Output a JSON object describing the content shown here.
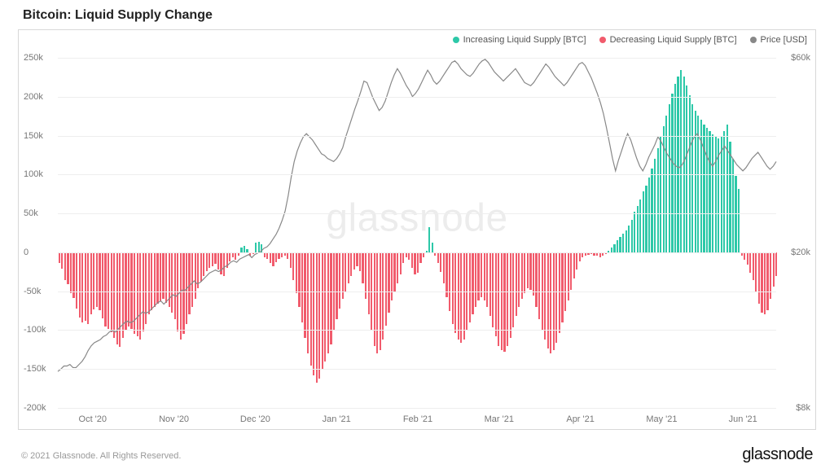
{
  "title": "Bitcoin: Liquid Supply Change",
  "watermark": "glassnode",
  "footer": {
    "copyright": "© 2021 Glassnode. All Rights Reserved.",
    "brand": "glassnode"
  },
  "legend": {
    "increasing": {
      "label": "Increasing Liquid Supply [BTC]",
      "color": "#2dc8a8"
    },
    "decreasing": {
      "label": "Decreasing Liquid Supply [BTC]",
      "color": "#f15b6c"
    },
    "price": {
      "label": "Price [USD]",
      "color": "#888888"
    }
  },
  "chart": {
    "type": "bar+line",
    "background_color": "#ffffff",
    "frame_color": "#d8d8d8",
    "grid_color": "#eeeeee",
    "bar_width_ratio": 0.62,
    "left_axis": {
      "min": -200,
      "max": 250,
      "ticks": [
        -200,
        -150,
        -100,
        -50,
        0,
        50,
        100,
        150,
        200,
        250
      ],
      "tick_labels": [
        "-200k",
        "-150k",
        "-100k",
        "-50k",
        "0",
        "50k",
        "100k",
        "150k",
        "200k",
        "250k"
      ],
      "label_color": "#777777",
      "label_fontsize": 11
    },
    "right_axis": {
      "ticks": [
        {
          "y_left_value": 250,
          "label": "$60k"
        },
        {
          "y_left_value": 0,
          "label": "$20k"
        },
        {
          "y_left_value": -200,
          "label": "$8k"
        }
      ],
      "label_color": "#777777",
      "label_fontsize": 11
    },
    "x_axis": {
      "labels": [
        "Oct '20",
        "Nov '20",
        "Dec '20",
        "Jan '21",
        "Feb '21",
        "Mar '21",
        "Apr '21",
        "May '21",
        "Jun '21"
      ],
      "label_positions": [
        12,
        40,
        68,
        96,
        124,
        152,
        180,
        208,
        236
      ]
    },
    "bars": [
      -14,
      -21,
      -36,
      -41,
      -52,
      -59,
      -72,
      -84,
      -90,
      -88,
      -92,
      -80,
      -73,
      -70,
      -74,
      -85,
      -95,
      -98,
      -103,
      -110,
      -118,
      -122,
      -110,
      -100,
      -95,
      -98,
      -105,
      -108,
      -112,
      -102,
      -92,
      -80,
      -74,
      -70,
      -66,
      -63,
      -60,
      -65,
      -70,
      -78,
      -86,
      -102,
      -112,
      -105,
      -92,
      -80,
      -70,
      -60,
      -46,
      -38,
      -30,
      -24,
      -20,
      -18,
      -15,
      -22,
      -28,
      -31,
      -20,
      -12,
      -6,
      -10,
      -4,
      6,
      8,
      4,
      -4,
      -2,
      12,
      14,
      10,
      -6,
      -8,
      -14,
      -18,
      -13,
      -8,
      -6,
      -4,
      -8,
      -20,
      -36,
      -52,
      -70,
      -90,
      -110,
      -130,
      -146,
      -158,
      -168,
      -162,
      -150,
      -140,
      -130,
      -118,
      -100,
      -86,
      -72,
      -60,
      -50,
      -40,
      -30,
      -22,
      -18,
      -24,
      -40,
      -60,
      -80,
      -100,
      -120,
      -130,
      -126,
      -112,
      -94,
      -78,
      -62,
      -50,
      -40,
      -28,
      -14,
      -6,
      -10,
      -20,
      -28,
      -26,
      -14,
      -6,
      2,
      32,
      12,
      -4,
      -14,
      -25,
      -40,
      -58,
      -76,
      -92,
      -104,
      -112,
      -116,
      -112,
      -100,
      -90,
      -80,
      -70,
      -62,
      -58,
      -62,
      -70,
      -82,
      -96,
      -108,
      -120,
      -126,
      -128,
      -120,
      -110,
      -96,
      -82,
      -70,
      -60,
      -52,
      -46,
      -48,
      -56,
      -70,
      -86,
      -100,
      -112,
      -124,
      -130,
      -126,
      -116,
      -104,
      -90,
      -76,
      -62,
      -48,
      -34,
      -22,
      -12,
      -6,
      -4,
      -3,
      -2,
      -4,
      -4,
      -6,
      -4,
      -2,
      2,
      6,
      10,
      16,
      20,
      24,
      28,
      34,
      42,
      52,
      60,
      68,
      78,
      86,
      96,
      108,
      120,
      134,
      148,
      162,
      176,
      190,
      204,
      216,
      226,
      234,
      226,
      214,
      202,
      190,
      182,
      176,
      170,
      164,
      160,
      156,
      152,
      148,
      146,
      150,
      156,
      164,
      142,
      120,
      98,
      82,
      -4,
      -10,
      -16,
      -26,
      -36,
      -50,
      -66,
      -78,
      -80,
      -74,
      -60,
      -44,
      -30
    ],
    "price_line": {
      "color": "#888888",
      "width": 1.2,
      "points": [
        -155,
        -152,
        -148,
        -148,
        -146,
        -150,
        -150,
        -146,
        -142,
        -136,
        -128,
        -122,
        -118,
        -116,
        -114,
        -110,
        -108,
        -104,
        -102,
        -104,
        -100,
        -96,
        -92,
        -90,
        -92,
        -90,
        -86,
        -82,
        -78,
        -80,
        -78,
        -74,
        -70,
        -66,
        -64,
        -68,
        -64,
        -60,
        -56,
        -58,
        -54,
        -50,
        -50,
        -46,
        -42,
        -38,
        -42,
        -40,
        -36,
        -32,
        -28,
        -26,
        -24,
        -26,
        -24,
        -20,
        -18,
        -14,
        -12,
        -14,
        -10,
        -8,
        -6,
        -4,
        -8,
        -4,
        -2,
        0,
        4,
        6,
        10,
        16,
        22,
        30,
        40,
        52,
        72,
        96,
        116,
        130,
        140,
        148,
        152,
        148,
        144,
        138,
        132,
        126,
        124,
        120,
        118,
        116,
        120,
        126,
        134,
        148,
        160,
        172,
        184,
        195,
        207,
        220,
        218,
        208,
        198,
        190,
        182,
        186,
        194,
        206,
        218,
        228,
        236,
        230,
        222,
        214,
        208,
        200,
        204,
        210,
        218,
        226,
        234,
        228,
        220,
        216,
        220,
        226,
        232,
        238,
        244,
        246,
        242,
        236,
        232,
        228,
        226,
        230,
        236,
        242,
        246,
        248,
        244,
        238,
        232,
        228,
        224,
        220,
        224,
        228,
        232,
        236,
        230,
        224,
        218,
        216,
        214,
        218,
        224,
        230,
        236,
        242,
        238,
        232,
        226,
        222,
        218,
        214,
        218,
        224,
        230,
        236,
        242,
        244,
        240,
        232,
        224,
        214,
        204,
        192,
        178,
        160,
        140,
        120,
        104,
        118,
        130,
        142,
        152,
        144,
        132,
        120,
        110,
        104,
        112,
        122,
        130,
        138,
        148,
        142,
        134,
        126,
        120,
        114,
        110,
        108,
        112,
        120,
        130,
        140,
        148,
        152,
        144,
        134,
        124,
        116,
        110,
        116,
        124,
        130,
        136,
        130,
        124,
        118,
        112,
        108,
        104,
        108,
        114,
        120,
        124,
        128,
        122,
        116,
        110,
        106,
        110,
        116
      ]
    }
  }
}
